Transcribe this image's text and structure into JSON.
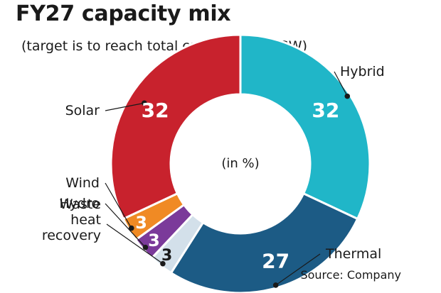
{
  "title": "FY27 capacity mix",
  "subtitle": "(target is to reach total capacity of 30GW)",
  "source": "Source: Company",
  "chart_data": {
    "type": "pie",
    "title": "FY27 capacity mix",
    "subtitle": "(target is to reach total capacity of 30GW)",
    "center_label": "(in %)",
    "slices": [
      {
        "label": "Hybrid",
        "value": 32,
        "value_label": "32",
        "color": "#20b6c8"
      },
      {
        "label": "Thermal",
        "value": 27,
        "value_label": "27",
        "color": "#1c5b85"
      },
      {
        "label": "Waste heat recovery",
        "label_lines": [
          "Waste",
          "heat",
          "recovery"
        ],
        "value": 3,
        "value_label": "3",
        "color": "#d3e0ea"
      },
      {
        "label": "Hydro",
        "value": 3,
        "value_label": "3",
        "color": "#7b3a9a"
      },
      {
        "label": "Wind",
        "value": 3,
        "value_label": "3",
        "color": "#f08a24"
      },
      {
        "label": "Solar",
        "value": 32,
        "value_label": "32",
        "color": "#c8222d"
      }
    ]
  }
}
